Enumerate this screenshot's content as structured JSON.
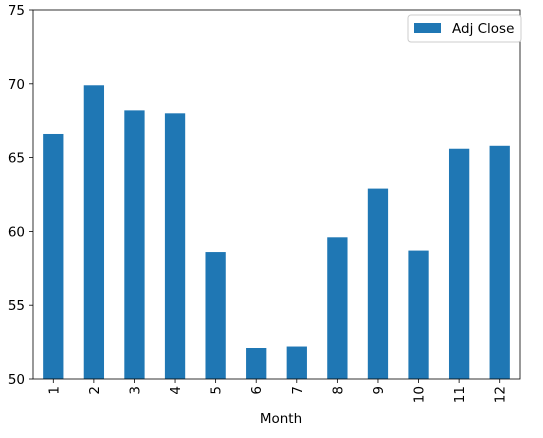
{
  "chart_data": {
    "type": "bar",
    "categories": [
      "1",
      "2",
      "3",
      "4",
      "5",
      "6",
      "7",
      "8",
      "9",
      "10",
      "11",
      "12"
    ],
    "series": [
      {
        "name": "Adj Close",
        "color": "#1f77b4",
        "values": [
          66.6,
          69.9,
          68.2,
          68.0,
          58.6,
          52.1,
          52.2,
          59.6,
          62.9,
          58.7,
          65.6,
          65.8
        ]
      }
    ],
    "title": "",
    "xlabel": "Month",
    "ylabel": "",
    "ylim": [
      50,
      75
    ],
    "yticks": [
      50,
      55,
      60,
      65,
      70,
      75
    ],
    "grid": false,
    "legend_position": "top-right"
  }
}
